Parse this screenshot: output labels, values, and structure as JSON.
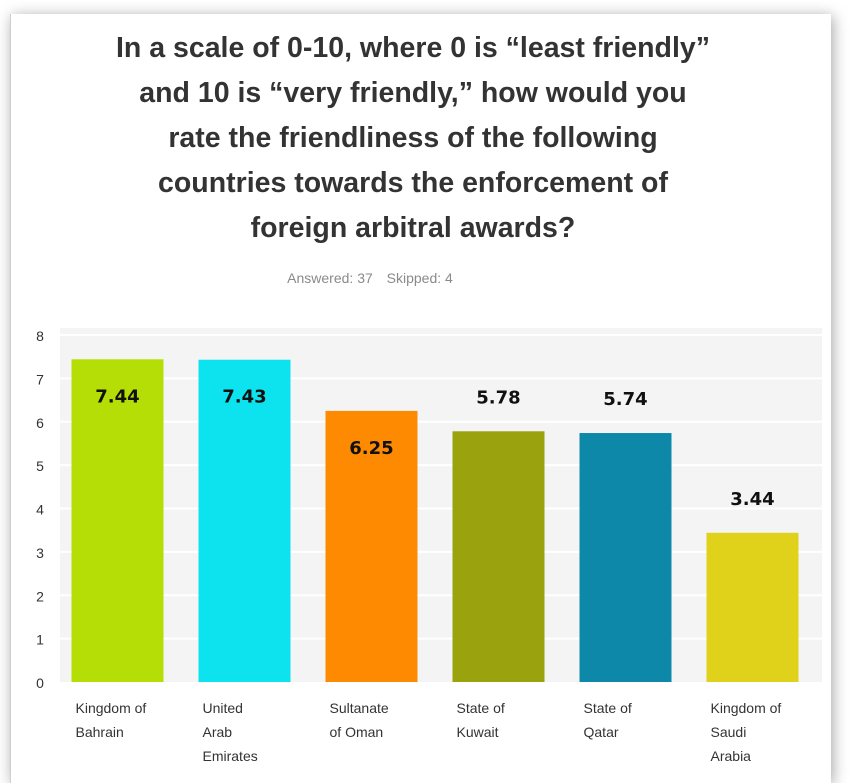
{
  "header": {
    "question": "In a scale of 0-10, where 0 is “least friendly”\nand 10 is “very friendly,” how would you\nrate the friendliness of the following\ncountries towards the enforcement of\nforeign arbitral awards?",
    "answered": "Answered: 37",
    "skipped": "Skipped: 4"
  },
  "chart_data": {
    "type": "bar",
    "categories": [
      [
        "Kingdom of",
        "Bahrain"
      ],
      [
        "United",
        "Arab",
        "Emirates"
      ],
      [
        "Sultanate",
        "of Oman"
      ],
      [
        "State of",
        "Kuwait"
      ],
      [
        "State of",
        "Qatar"
      ],
      [
        "Kingdom of",
        "Saudi",
        "Arabia"
      ]
    ],
    "values": [
      7.44,
      7.43,
      6.25,
      5.78,
      5.74,
      3.44
    ],
    "value_labels": [
      "7.44",
      "7.43",
      "6.25",
      "5.78",
      "5.74",
      "3.44"
    ],
    "colors": [
      "#b5dd06",
      "#0de3ee",
      "#fd8a00",
      "#9aa20e",
      "#0e88a9",
      "#e0d11a"
    ],
    "ylim": [
      0,
      8
    ],
    "yticks": [
      "0",
      "1",
      "2",
      "3",
      "4",
      "5",
      "6",
      "7",
      "8"
    ],
    "grid": true,
    "title": "",
    "xlabel": "",
    "ylabel": ""
  }
}
